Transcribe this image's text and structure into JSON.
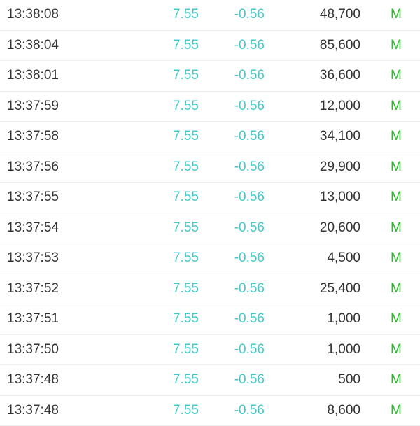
{
  "colors": {
    "price": "#43c9c9",
    "change": "#43c9c9",
    "type": "#2eb82e",
    "text": "#333333"
  },
  "trades": [
    {
      "time": "13:38:08",
      "price": "7.55",
      "change": "-0.56",
      "volume": "48,700",
      "type": "M"
    },
    {
      "time": "13:38:04",
      "price": "7.55",
      "change": "-0.56",
      "volume": "85,600",
      "type": "M"
    },
    {
      "time": "13:38:01",
      "price": "7.55",
      "change": "-0.56",
      "volume": "36,600",
      "type": "M"
    },
    {
      "time": "13:37:59",
      "price": "7.55",
      "change": "-0.56",
      "volume": "12,000",
      "type": "M"
    },
    {
      "time": "13:37:58",
      "price": "7.55",
      "change": "-0.56",
      "volume": "34,100",
      "type": "M"
    },
    {
      "time": "13:37:56",
      "price": "7.55",
      "change": "-0.56",
      "volume": "29,900",
      "type": "M"
    },
    {
      "time": "13:37:55",
      "price": "7.55",
      "change": "-0.56",
      "volume": "13,000",
      "type": "M"
    },
    {
      "time": "13:37:54",
      "price": "7.55",
      "change": "-0.56",
      "volume": "20,600",
      "type": "M"
    },
    {
      "time": "13:37:53",
      "price": "7.55",
      "change": "-0.56",
      "volume": "4,500",
      "type": "M"
    },
    {
      "time": "13:37:52",
      "price": "7.55",
      "change": "-0.56",
      "volume": "25,400",
      "type": "M"
    },
    {
      "time": "13:37:51",
      "price": "7.55",
      "change": "-0.56",
      "volume": "1,000",
      "type": "M"
    },
    {
      "time": "13:37:50",
      "price": "7.55",
      "change": "-0.56",
      "volume": "1,000",
      "type": "M"
    },
    {
      "time": "13:37:48",
      "price": "7.55",
      "change": "-0.56",
      "volume": "500",
      "type": "M"
    },
    {
      "time": "13:37:48",
      "price": "7.55",
      "change": "-0.56",
      "volume": "8,600",
      "type": "M"
    }
  ]
}
